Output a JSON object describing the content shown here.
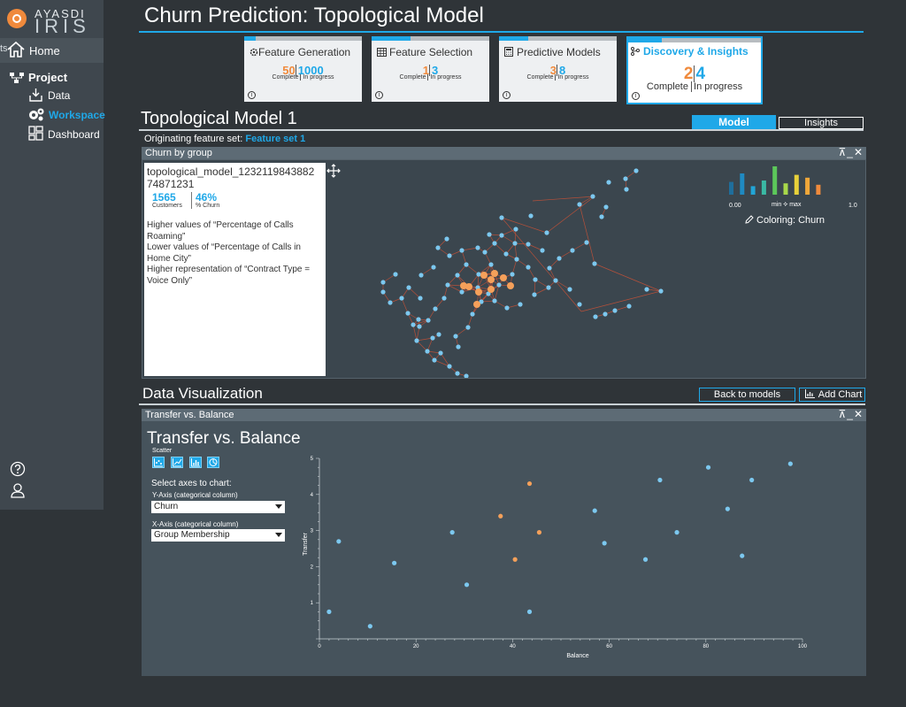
{
  "app": {
    "logo_top": "AYASDI",
    "logo_bottom": "IRIS"
  },
  "sidebar": {
    "home_edge": "ts",
    "home": "Home",
    "project": "Project",
    "data": "Data",
    "workspace": "Workspace",
    "dashboard": "Dashboard"
  },
  "header": {
    "title": "Churn Prediction: Topological Model"
  },
  "pipeline": {
    "cards": [
      {
        "title": "Feature Generation",
        "complete": "50",
        "in_progress": "1000",
        "complete_label": "Complete",
        "progress_label": "In progress",
        "progress": 0.1,
        "icon": "gear-icon"
      },
      {
        "title": "Feature Selection",
        "complete": "1",
        "in_progress": "3",
        "complete_label": "Complete",
        "progress_label": "In progress",
        "progress": 0.33,
        "icon": "table-icon"
      },
      {
        "title": "Predictive Models",
        "complete": "3",
        "in_progress": "8",
        "complete_label": "Complete",
        "progress_label": "In progress",
        "progress": 0.25,
        "icon": "calculator-icon"
      },
      {
        "title": "Discovery & Insights",
        "complete": "2",
        "in_progress": "4",
        "complete_label": "Complete",
        "progress_label": "In progress",
        "progress": 0.25,
        "icon": "branch-icon"
      }
    ],
    "info_glyph": "i"
  },
  "topo": {
    "title": "Topological Model 1",
    "tab_model": "Model",
    "tab_insights": "Insights",
    "originating_label": "Originating feature set:",
    "originating_value": "Feature set 1"
  },
  "churn_panel": {
    "title": "Churn by group",
    "model_name": "topological_model_1232119843882 74871231",
    "customers": "1565",
    "customers_label": "Customers",
    "churn": "46%",
    "churn_label": "% Churn",
    "insights": [
      "Higher values of “Percentage of Calls Roaming”",
      "Lower values of “Percentage of Calls in Home City”",
      "Higher representation of “Contract Type = Voice Only”"
    ],
    "legend": {
      "min_value": "0.00",
      "max_value": "1.0",
      "range_label": "min ⯎ max",
      "coloring": "Coloring: Churn",
      "bars": [
        {
          "height": 0.45,
          "color": "#1f6e9c"
        },
        {
          "height": 0.75,
          "color": "#1f8ac2"
        },
        {
          "height": 0.3,
          "color": "#22a5d6"
        },
        {
          "height": 0.5,
          "color": "#3ab9a4"
        },
        {
          "height": 1.0,
          "color": "#5cc85a"
        },
        {
          "height": 0.4,
          "color": "#a8d84a"
        },
        {
          "height": 0.7,
          "color": "#e8d13a"
        },
        {
          "height": 0.6,
          "color": "#f0a73a"
        },
        {
          "height": 0.35,
          "color": "#f08a3c"
        }
      ]
    }
  },
  "data_viz": {
    "title": "Data Visualization",
    "back_button": "Back to models",
    "add_chart_button": "Add Chart",
    "panel_title": "Transfer vs. Balance",
    "chart_title": "Transfer vs. Balance",
    "scatter_label": "Scatter",
    "select_axes_label": "Select axes to chart:",
    "y_axis_label": "Y-Axis (categorical column)",
    "y_axis_value": "Churn",
    "x_axis_label": "X-Axis (categorical column)",
    "x_axis_value": "Group Membership"
  },
  "chart_data": {
    "type": "scatter",
    "title": "Transfer vs. Balance",
    "xlabel": "Balance",
    "ylabel": "Transfer",
    "xlim": [
      0,
      100
    ],
    "ylim": [
      0,
      5
    ],
    "x_ticks": [
      0,
      20,
      40,
      60,
      80,
      100
    ],
    "y_ticks": [
      1,
      2,
      3,
      4,
      5
    ],
    "colors": {
      "default": "#7cc8ef",
      "highlight": "#f5a05a"
    },
    "series": [
      {
        "color": "#7cc8ef",
        "points": [
          {
            "x": 2,
            "y": 0.75
          },
          {
            "x": 4,
            "y": 2.7
          },
          {
            "x": 10.5,
            "y": 0.35
          },
          {
            "x": 15.5,
            "y": 2.1
          },
          {
            "x": 27.5,
            "y": 2.95
          },
          {
            "x": 30.5,
            "y": 1.5
          },
          {
            "x": 43.5,
            "y": 0.75
          },
          {
            "x": 57,
            "y": 3.55
          },
          {
            "x": 59,
            "y": 2.65
          },
          {
            "x": 67.5,
            "y": 2.2
          },
          {
            "x": 70.5,
            "y": 4.4
          },
          {
            "x": 74,
            "y": 2.95
          },
          {
            "x": 80.5,
            "y": 4.75
          },
          {
            "x": 84.5,
            "y": 3.6
          },
          {
            "x": 87.5,
            "y": 2.3
          },
          {
            "x": 89.5,
            "y": 4.4
          },
          {
            "x": 97.5,
            "y": 4.85
          }
        ]
      },
      {
        "color": "#f5a05a",
        "points": [
          {
            "x": 37.5,
            "y": 3.4
          },
          {
            "x": 40.5,
            "y": 2.2
          },
          {
            "x": 43.5,
            "y": 4.3
          },
          {
            "x": 45.5,
            "y": 2.95
          }
        ]
      }
    ]
  }
}
